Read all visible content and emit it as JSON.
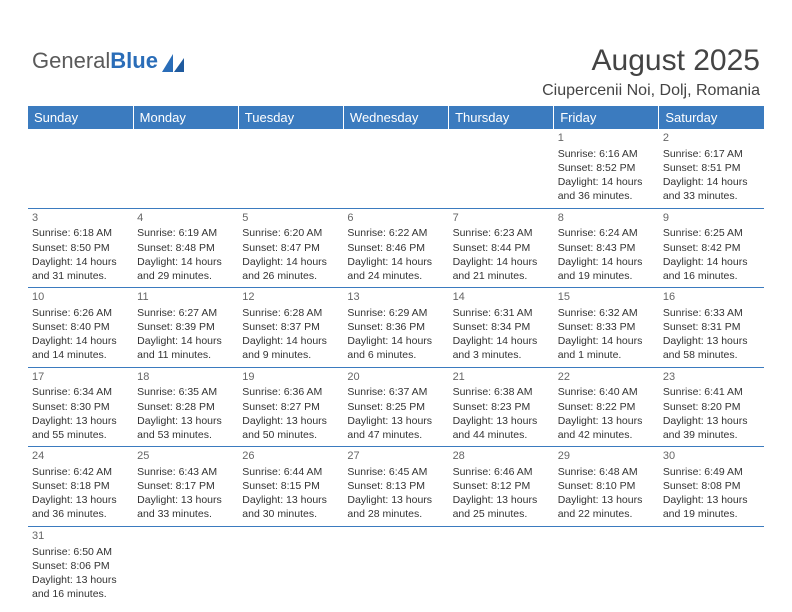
{
  "logo": {
    "text1": "General",
    "text2": "Blue"
  },
  "header": {
    "month": "August 2025",
    "location": "Ciupercenii Noi, Dolj, Romania"
  },
  "colors": {
    "header_bg": "#3b7bbf",
    "header_fg": "#ffffff",
    "border": "#3b7bbf",
    "text": "#333333",
    "daynum": "#666666"
  },
  "weekdays": [
    "Sunday",
    "Monday",
    "Tuesday",
    "Wednesday",
    "Thursday",
    "Friday",
    "Saturday"
  ],
  "weeks": [
    [
      null,
      null,
      null,
      null,
      null,
      {
        "n": "1",
        "sr": "Sunrise: 6:16 AM",
        "ss": "Sunset: 8:52 PM",
        "dl": "Daylight: 14 hours and 36 minutes."
      },
      {
        "n": "2",
        "sr": "Sunrise: 6:17 AM",
        "ss": "Sunset: 8:51 PM",
        "dl": "Daylight: 14 hours and 33 minutes."
      }
    ],
    [
      {
        "n": "3",
        "sr": "Sunrise: 6:18 AM",
        "ss": "Sunset: 8:50 PM",
        "dl": "Daylight: 14 hours and 31 minutes."
      },
      {
        "n": "4",
        "sr": "Sunrise: 6:19 AM",
        "ss": "Sunset: 8:48 PM",
        "dl": "Daylight: 14 hours and 29 minutes."
      },
      {
        "n": "5",
        "sr": "Sunrise: 6:20 AM",
        "ss": "Sunset: 8:47 PM",
        "dl": "Daylight: 14 hours and 26 minutes."
      },
      {
        "n": "6",
        "sr": "Sunrise: 6:22 AM",
        "ss": "Sunset: 8:46 PM",
        "dl": "Daylight: 14 hours and 24 minutes."
      },
      {
        "n": "7",
        "sr": "Sunrise: 6:23 AM",
        "ss": "Sunset: 8:44 PM",
        "dl": "Daylight: 14 hours and 21 minutes."
      },
      {
        "n": "8",
        "sr": "Sunrise: 6:24 AM",
        "ss": "Sunset: 8:43 PM",
        "dl": "Daylight: 14 hours and 19 minutes."
      },
      {
        "n": "9",
        "sr": "Sunrise: 6:25 AM",
        "ss": "Sunset: 8:42 PM",
        "dl": "Daylight: 14 hours and 16 minutes."
      }
    ],
    [
      {
        "n": "10",
        "sr": "Sunrise: 6:26 AM",
        "ss": "Sunset: 8:40 PM",
        "dl": "Daylight: 14 hours and 14 minutes."
      },
      {
        "n": "11",
        "sr": "Sunrise: 6:27 AM",
        "ss": "Sunset: 8:39 PM",
        "dl": "Daylight: 14 hours and 11 minutes."
      },
      {
        "n": "12",
        "sr": "Sunrise: 6:28 AM",
        "ss": "Sunset: 8:37 PM",
        "dl": "Daylight: 14 hours and 9 minutes."
      },
      {
        "n": "13",
        "sr": "Sunrise: 6:29 AM",
        "ss": "Sunset: 8:36 PM",
        "dl": "Daylight: 14 hours and 6 minutes."
      },
      {
        "n": "14",
        "sr": "Sunrise: 6:31 AM",
        "ss": "Sunset: 8:34 PM",
        "dl": "Daylight: 14 hours and 3 minutes."
      },
      {
        "n": "15",
        "sr": "Sunrise: 6:32 AM",
        "ss": "Sunset: 8:33 PM",
        "dl": "Daylight: 14 hours and 1 minute."
      },
      {
        "n": "16",
        "sr": "Sunrise: 6:33 AM",
        "ss": "Sunset: 8:31 PM",
        "dl": "Daylight: 13 hours and 58 minutes."
      }
    ],
    [
      {
        "n": "17",
        "sr": "Sunrise: 6:34 AM",
        "ss": "Sunset: 8:30 PM",
        "dl": "Daylight: 13 hours and 55 minutes."
      },
      {
        "n": "18",
        "sr": "Sunrise: 6:35 AM",
        "ss": "Sunset: 8:28 PM",
        "dl": "Daylight: 13 hours and 53 minutes."
      },
      {
        "n": "19",
        "sr": "Sunrise: 6:36 AM",
        "ss": "Sunset: 8:27 PM",
        "dl": "Daylight: 13 hours and 50 minutes."
      },
      {
        "n": "20",
        "sr": "Sunrise: 6:37 AM",
        "ss": "Sunset: 8:25 PM",
        "dl": "Daylight: 13 hours and 47 minutes."
      },
      {
        "n": "21",
        "sr": "Sunrise: 6:38 AM",
        "ss": "Sunset: 8:23 PM",
        "dl": "Daylight: 13 hours and 44 minutes."
      },
      {
        "n": "22",
        "sr": "Sunrise: 6:40 AM",
        "ss": "Sunset: 8:22 PM",
        "dl": "Daylight: 13 hours and 42 minutes."
      },
      {
        "n": "23",
        "sr": "Sunrise: 6:41 AM",
        "ss": "Sunset: 8:20 PM",
        "dl": "Daylight: 13 hours and 39 minutes."
      }
    ],
    [
      {
        "n": "24",
        "sr": "Sunrise: 6:42 AM",
        "ss": "Sunset: 8:18 PM",
        "dl": "Daylight: 13 hours and 36 minutes."
      },
      {
        "n": "25",
        "sr": "Sunrise: 6:43 AM",
        "ss": "Sunset: 8:17 PM",
        "dl": "Daylight: 13 hours and 33 minutes."
      },
      {
        "n": "26",
        "sr": "Sunrise: 6:44 AM",
        "ss": "Sunset: 8:15 PM",
        "dl": "Daylight: 13 hours and 30 minutes."
      },
      {
        "n": "27",
        "sr": "Sunrise: 6:45 AM",
        "ss": "Sunset: 8:13 PM",
        "dl": "Daylight: 13 hours and 28 minutes."
      },
      {
        "n": "28",
        "sr": "Sunrise: 6:46 AM",
        "ss": "Sunset: 8:12 PM",
        "dl": "Daylight: 13 hours and 25 minutes."
      },
      {
        "n": "29",
        "sr": "Sunrise: 6:48 AM",
        "ss": "Sunset: 8:10 PM",
        "dl": "Daylight: 13 hours and 22 minutes."
      },
      {
        "n": "30",
        "sr": "Sunrise: 6:49 AM",
        "ss": "Sunset: 8:08 PM",
        "dl": "Daylight: 13 hours and 19 minutes."
      }
    ],
    [
      {
        "n": "31",
        "sr": "Sunrise: 6:50 AM",
        "ss": "Sunset: 8:06 PM",
        "dl": "Daylight: 13 hours and 16 minutes."
      },
      null,
      null,
      null,
      null,
      null,
      null
    ]
  ]
}
